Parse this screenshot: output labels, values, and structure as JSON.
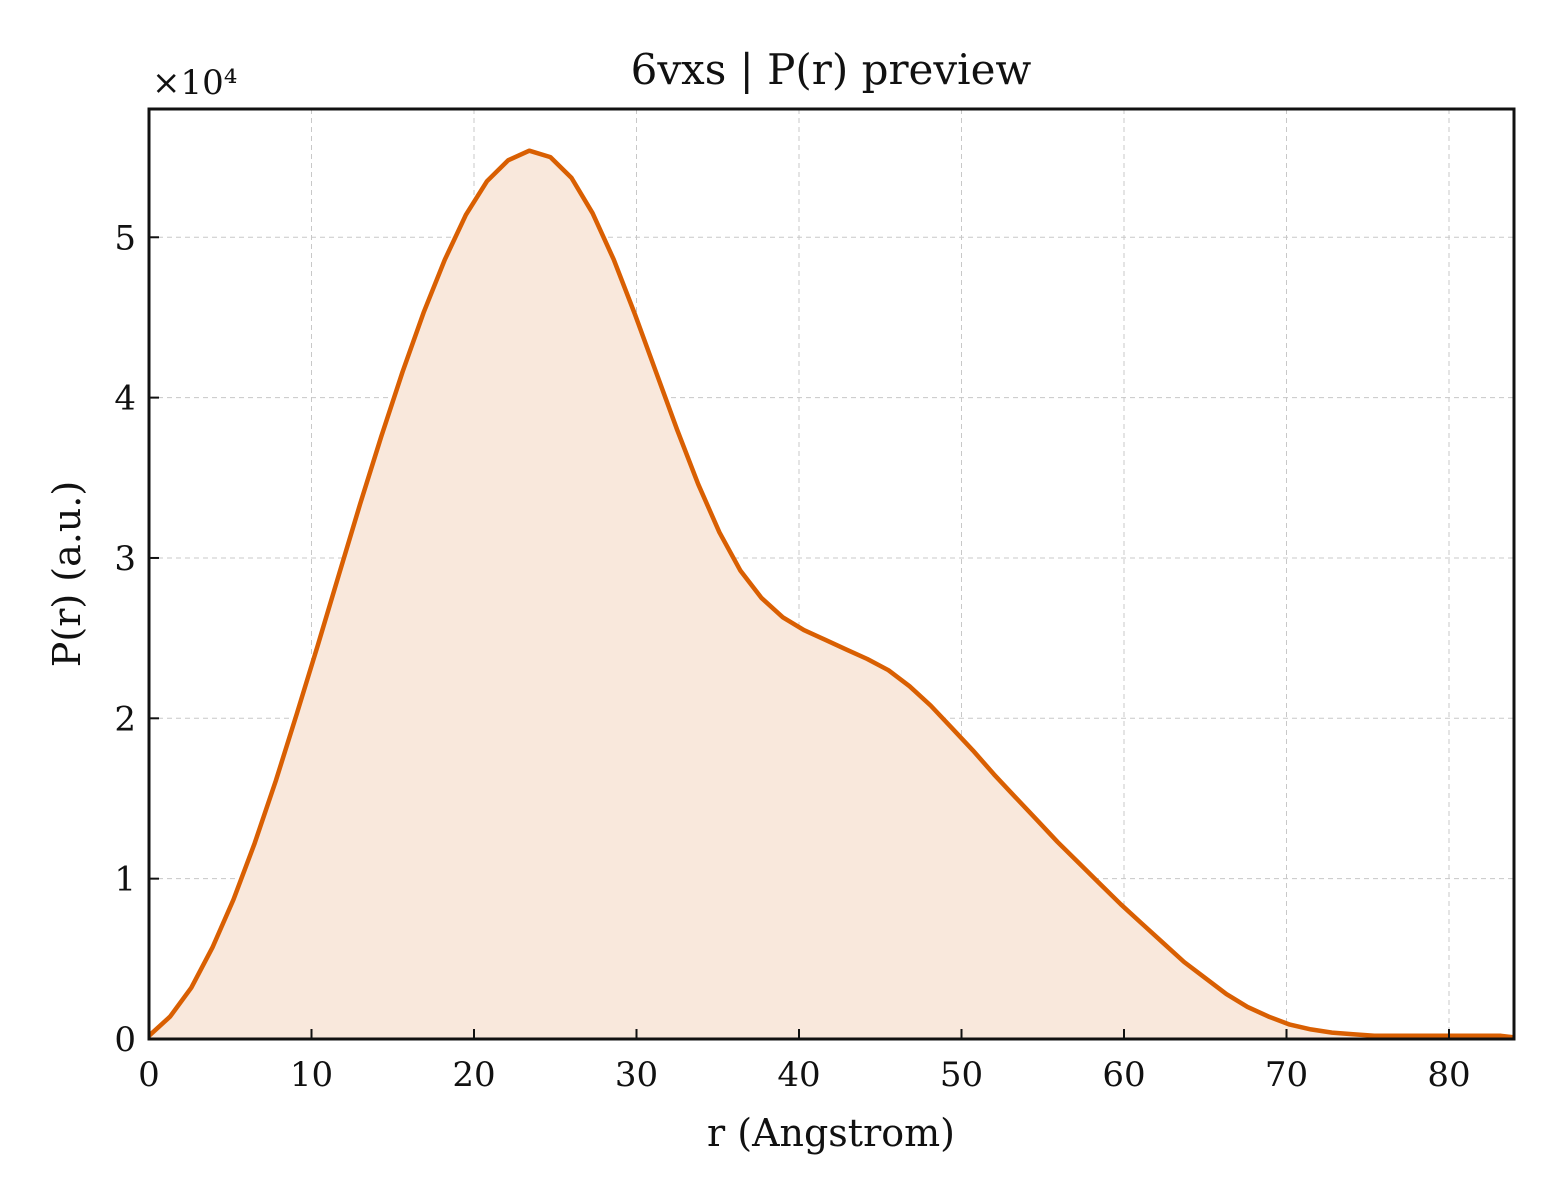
{
  "chart_data": {
    "type": "area",
    "title": "6vxs | P(r) preview",
    "xlabel": "r (Angstrom)",
    "ylabel": "P(r) (a.u.)",
    "y_multiplier_label": "×10⁴",
    "xlim": [
      0,
      84
    ],
    "ylim": [
      0,
      5.8
    ],
    "xticks": [
      0,
      10,
      20,
      30,
      40,
      50,
      60,
      70,
      80
    ],
    "yticks": [
      0,
      1,
      2,
      3,
      4,
      5
    ],
    "grid": true,
    "series": [
      {
        "color": "#d95f02",
        "fill_color": "#f9e8dc",
        "x": [
          0,
          1.3,
          2.6,
          3.9,
          5.2,
          6.5,
          7.8,
          9.1,
          10.4,
          11.7,
          13.0,
          14.3,
          15.6,
          16.9,
          18.2,
          19.5,
          20.8,
          22.1,
          23.4,
          24.7,
          26.0,
          27.3,
          28.6,
          29.9,
          31.2,
          32.5,
          33.8,
          35.1,
          36.4,
          37.7,
          39.0,
          40.3,
          41.6,
          42.9,
          44.2,
          45.5,
          46.8,
          48.1,
          49.4,
          50.7,
          52.0,
          53.3,
          54.6,
          55.9,
          57.2,
          58.5,
          59.8,
          61.1,
          62.4,
          63.7,
          65.0,
          66.3,
          67.6,
          68.9,
          70.2,
          71.5,
          72.8,
          74.1,
          75.4,
          76.7,
          78.0,
          79.3,
          80.6,
          81.9,
          83.2,
          84.0
        ],
        "values": [
          0.02,
          0.14,
          0.32,
          0.57,
          0.87,
          1.22,
          1.61,
          2.03,
          2.46,
          2.9,
          3.34,
          3.76,
          4.16,
          4.53,
          4.86,
          5.14,
          5.35,
          5.48,
          5.54,
          5.5,
          5.37,
          5.15,
          4.86,
          4.52,
          4.16,
          3.8,
          3.46,
          3.16,
          2.92,
          2.75,
          2.63,
          2.55,
          2.49,
          2.43,
          2.37,
          2.3,
          2.2,
          2.08,
          1.94,
          1.8,
          1.65,
          1.51,
          1.37,
          1.23,
          1.1,
          0.97,
          0.84,
          0.72,
          0.6,
          0.48,
          0.38,
          0.28,
          0.2,
          0.14,
          0.09,
          0.06,
          0.04,
          0.03,
          0.02,
          0.02,
          0.02,
          0.02,
          0.02,
          0.02,
          0.02,
          0.01
        ]
      }
    ]
  }
}
